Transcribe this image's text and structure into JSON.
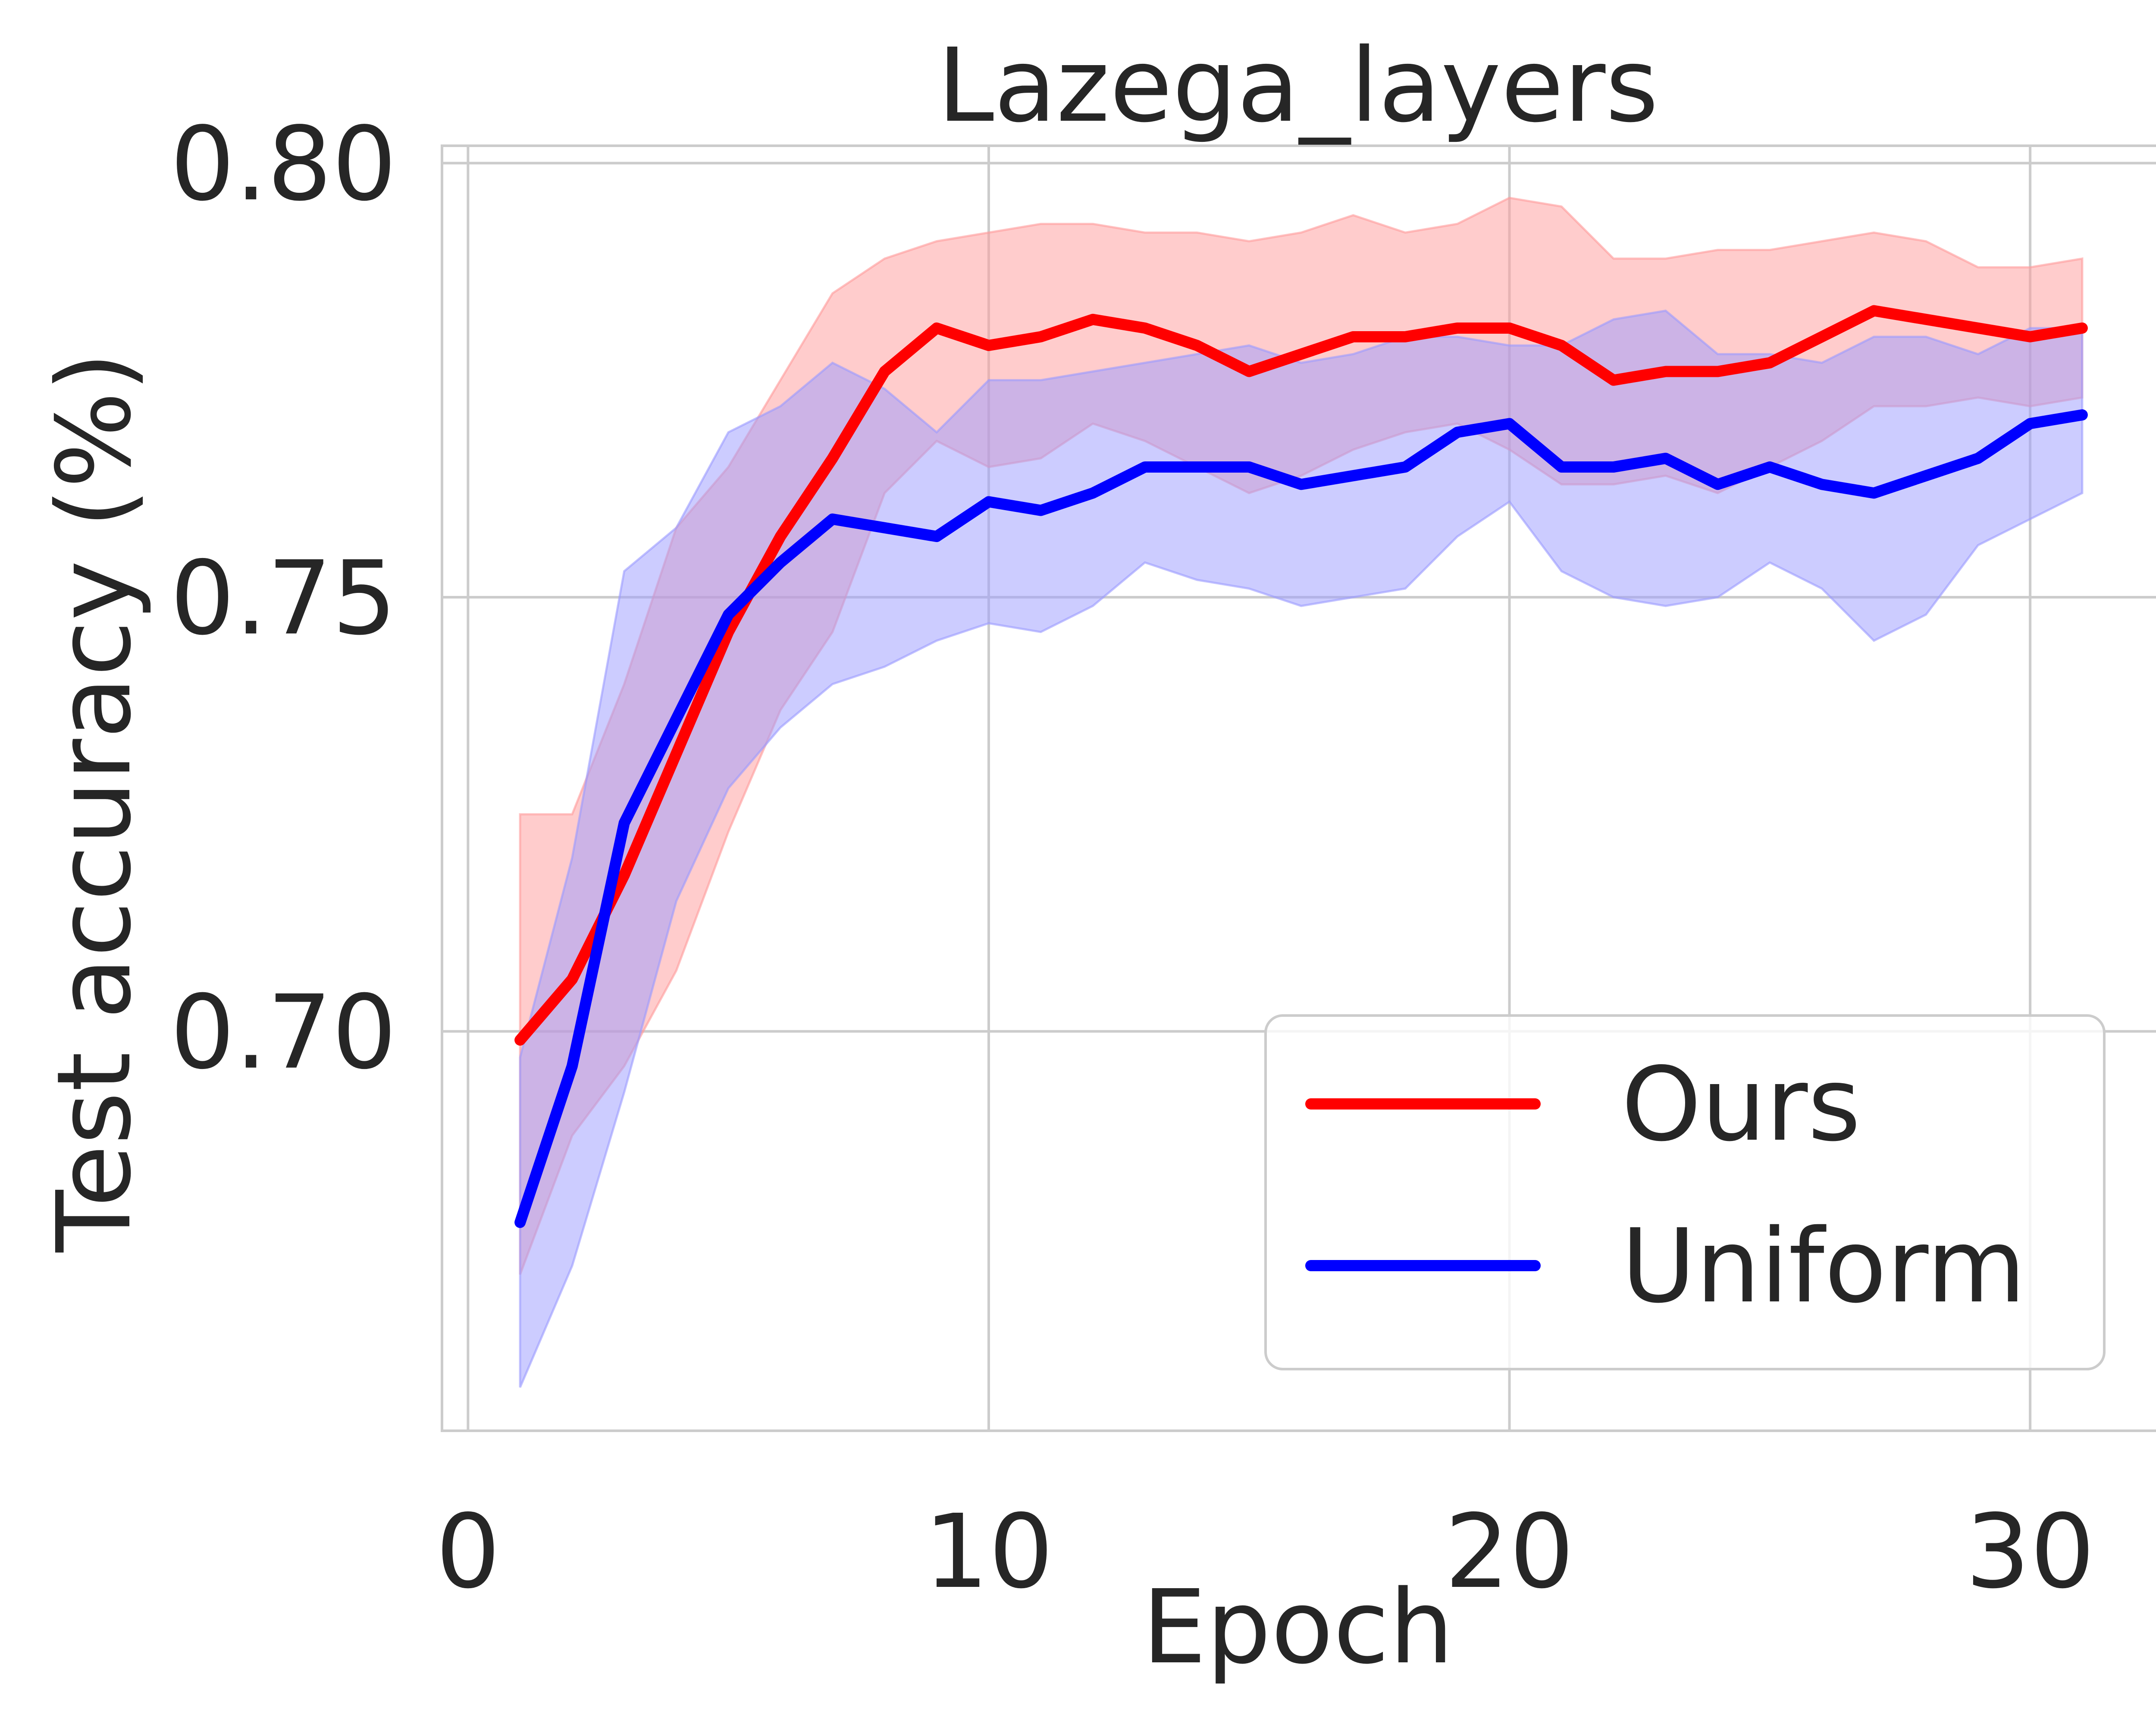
{
  "chart_data": {
    "type": "line",
    "title": "Lazega_layers",
    "xlabel": "Epoch",
    "ylabel": "Test accuracy (%)",
    "xlim": [
      -0.5,
      32.5
    ],
    "ylim": [
      0.654,
      0.802
    ],
    "xticks": [
      0,
      10,
      20,
      30
    ],
    "xtick_labels": [
      "0",
      "10",
      "20",
      "30"
    ],
    "yticks": [
      0.7,
      0.75,
      0.8
    ],
    "ytick_labels": [
      "0.70",
      "0.75",
      "0.80"
    ],
    "grid": true,
    "legend_position": "lower right",
    "x": [
      1,
      2,
      3,
      4,
      5,
      6,
      7,
      8,
      9,
      10,
      11,
      12,
      13,
      14,
      15,
      16,
      17,
      18,
      19,
      20,
      21,
      22,
      23,
      24,
      25,
      26,
      27,
      28,
      29,
      30,
      31
    ],
    "series": [
      {
        "name": "Ours",
        "color": "#ff0000",
        "band_color": "#ff9a9a",
        "values": [
          0.699,
          0.706,
          0.718,
          0.732,
          0.746,
          0.757,
          0.766,
          0.776,
          0.781,
          0.779,
          0.78,
          0.782,
          0.781,
          0.779,
          0.776,
          0.778,
          0.78,
          0.78,
          0.781,
          0.781,
          0.779,
          0.775,
          0.776,
          0.776,
          0.777,
          0.78,
          0.783,
          0.782,
          0.781,
          0.78,
          0.781
        ],
        "upper": [
          0.725,
          0.725,
          0.74,
          0.758,
          0.765,
          0.775,
          0.785,
          0.789,
          0.791,
          0.792,
          0.793,
          0.793,
          0.792,
          0.792,
          0.791,
          0.792,
          0.794,
          0.792,
          0.793,
          0.796,
          0.795,
          0.789,
          0.789,
          0.79,
          0.79,
          0.791,
          0.792,
          0.791,
          0.788,
          0.788,
          0.789
        ],
        "lower": [
          0.672,
          0.688,
          0.696,
          0.707,
          0.723,
          0.737,
          0.746,
          0.762,
          0.768,
          0.765,
          0.766,
          0.77,
          0.768,
          0.765,
          0.762,
          0.764,
          0.767,
          0.769,
          0.77,
          0.767,
          0.763,
          0.763,
          0.764,
          0.762,
          0.765,
          0.768,
          0.772,
          0.772,
          0.773,
          0.772,
          0.773
        ]
      },
      {
        "name": "Uniform",
        "color": "#0000ff",
        "band_color": "#9a9aff",
        "values": [
          0.678,
          0.696,
          0.724,
          0.736,
          0.748,
          0.754,
          0.759,
          0.758,
          0.757,
          0.761,
          0.76,
          0.762,
          0.765,
          0.765,
          0.765,
          0.763,
          0.764,
          0.765,
          0.769,
          0.77,
          0.765,
          0.765,
          0.766,
          0.763,
          0.765,
          0.763,
          0.762,
          0.764,
          0.766,
          0.77,
          0.771
        ],
        "upper": [
          0.697,
          0.72,
          0.753,
          0.758,
          0.769,
          0.772,
          0.777,
          0.774,
          0.769,
          0.775,
          0.775,
          0.776,
          0.777,
          0.778,
          0.779,
          0.777,
          0.778,
          0.78,
          0.78,
          0.779,
          0.779,
          0.782,
          0.783,
          0.778,
          0.778,
          0.777,
          0.78,
          0.78,
          0.778,
          0.781,
          0.781
        ],
        "lower": [
          0.659,
          0.673,
          0.693,
          0.715,
          0.728,
          0.735,
          0.74,
          0.742,
          0.745,
          0.747,
          0.746,
          0.749,
          0.754,
          0.752,
          0.751,
          0.749,
          0.75,
          0.751,
          0.757,
          0.761,
          0.753,
          0.75,
          0.749,
          0.75,
          0.754,
          0.751,
          0.745,
          0.748,
          0.756,
          0.759,
          0.762
        ]
      }
    ]
  }
}
